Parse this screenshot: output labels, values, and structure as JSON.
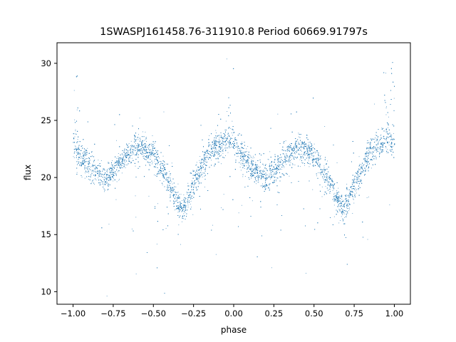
{
  "chart_data": {
    "type": "scatter",
    "title": "1SWASPJ161458.76-311910.8 Period 60669.91797s",
    "xlabel": "phase",
    "ylabel": "flux",
    "xlim": [
      -1.1,
      1.1
    ],
    "ylim": [
      8.9,
      31.8
    ],
    "xticks": [
      -1.0,
      -0.75,
      -0.5,
      -0.25,
      0.0,
      0.25,
      0.5,
      0.75,
      1.0
    ],
    "xtick_labels": [
      "−1.00",
      "−0.75",
      "−0.50",
      "−0.25",
      "0.00",
      "0.25",
      "0.50",
      "0.75",
      "1.00"
    ],
    "yticks": [
      10,
      15,
      20,
      25,
      30
    ],
    "ytick_labels": [
      "10",
      "15",
      "20",
      "25",
      "30"
    ],
    "grid": false,
    "legend": "none",
    "point_color": "#1f77b4",
    "light_curve": {
      "x": [
        -1.0,
        -0.9,
        -0.8,
        -0.7,
        -0.6,
        -0.5,
        -0.4,
        -0.32,
        -0.25,
        -0.15,
        -0.05,
        0.0,
        0.1,
        0.2,
        0.3,
        0.4,
        0.5,
        0.6,
        0.68,
        0.75,
        0.85,
        0.95,
        1.0
      ],
      "y": [
        22.5,
        21.0,
        19.8,
        21.5,
        22.8,
        22.0,
        19.5,
        17.0,
        19.5,
        22.3,
        23.2,
        23.0,
        21.0,
        19.8,
        21.5,
        22.8,
        22.0,
        19.5,
        17.0,
        19.5,
        22.3,
        23.2,
        23.0
      ]
    },
    "flare_regions": {
      "x": [
        -1.0,
        -0.97,
        -0.05,
        0.0,
        0.93,
        1.0
      ],
      "y": [
        27.0,
        25.5,
        27.5,
        27.0,
        27.2,
        28.0
      ]
    },
    "point_count": 9000,
    "scatter_spread": 0.6
  }
}
